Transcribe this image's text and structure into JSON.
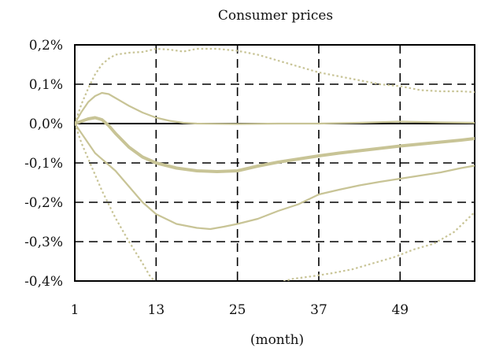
{
  "chart_data": {
    "type": "line",
    "title": "Consumer prices",
    "xlabel": "(month)",
    "ylabel": "",
    "xlim": [
      1,
      60
    ],
    "ylim": [
      -0.4,
      0.2
    ],
    "x_ticks": [
      1,
      13,
      25,
      37,
      49
    ],
    "x_tick_labels": [
      "1",
      "13",
      "25",
      "37",
      "49"
    ],
    "y_ticks": [
      0.2,
      0.1,
      0.0,
      -0.1,
      -0.2,
      -0.3,
      -0.4
    ],
    "y_tick_labels": [
      "0,2%",
      "0,1%",
      "0,0%",
      "-0,1%",
      "-0,2%",
      "-0,3%",
      "-0,4%"
    ],
    "grid": true,
    "line_color": "#c8c496",
    "series": [
      {
        "style": "thick",
        "points": [
          [
            1,
            0.0
          ],
          [
            2,
            0.006
          ],
          [
            3,
            0.012
          ],
          [
            4,
            0.015
          ],
          [
            5,
            0.01
          ],
          [
            6,
            -0.005
          ],
          [
            7,
            -0.025
          ],
          [
            9,
            -0.06
          ],
          [
            11,
            -0.085
          ],
          [
            13,
            -0.1
          ],
          [
            16,
            -0.113
          ],
          [
            19,
            -0.12
          ],
          [
            22,
            -0.122
          ],
          [
            25,
            -0.12
          ],
          [
            28,
            -0.108
          ],
          [
            31,
            -0.098
          ],
          [
            34,
            -0.09
          ],
          [
            37,
            -0.082
          ],
          [
            40,
            -0.075
          ],
          [
            43,
            -0.069
          ],
          [
            46,
            -0.063
          ],
          [
            49,
            -0.057
          ],
          [
            52,
            -0.052
          ],
          [
            55,
            -0.047
          ],
          [
            58,
            -0.042
          ],
          [
            60,
            -0.038
          ]
        ]
      },
      {
        "style": "thin",
        "points": [
          [
            1,
            0.0
          ],
          [
            2,
            0.03
          ],
          [
            3,
            0.055
          ],
          [
            4,
            0.07
          ],
          [
            5,
            0.078
          ],
          [
            6,
            0.075
          ],
          [
            7,
            0.065
          ],
          [
            9,
            0.045
          ],
          [
            11,
            0.028
          ],
          [
            13,
            0.015
          ],
          [
            15,
            0.007
          ],
          [
            17,
            0.002
          ],
          [
            19,
            0.0
          ],
          [
            25,
            -0.001
          ],
          [
            31,
            0.0
          ],
          [
            37,
            0.0
          ],
          [
            43,
            0.002
          ],
          [
            49,
            0.005
          ],
          [
            55,
            0.003
          ],
          [
            60,
            0.002
          ]
        ]
      },
      {
        "style": "thin",
        "points": [
          [
            1,
            0.0
          ],
          [
            2,
            -0.025
          ],
          [
            3,
            -0.05
          ],
          [
            4,
            -0.075
          ],
          [
            5,
            -0.09
          ],
          [
            7,
            -0.12
          ],
          [
            9,
            -0.16
          ],
          [
            11,
            -0.2
          ],
          [
            13,
            -0.23
          ],
          [
            16,
            -0.255
          ],
          [
            19,
            -0.265
          ],
          [
            21,
            -0.268
          ],
          [
            23,
            -0.262
          ],
          [
            25,
            -0.255
          ],
          [
            28,
            -0.242
          ],
          [
            31,
            -0.222
          ],
          [
            34,
            -0.205
          ],
          [
            37,
            -0.18
          ],
          [
            40,
            -0.168
          ],
          [
            43,
            -0.157
          ],
          [
            46,
            -0.148
          ],
          [
            49,
            -0.14
          ],
          [
            52,
            -0.132
          ],
          [
            55,
            -0.124
          ],
          [
            58,
            -0.113
          ],
          [
            60,
            -0.107
          ]
        ]
      },
      {
        "style": "dotted",
        "points": [
          [
            1,
            0.0
          ],
          [
            2,
            0.05
          ],
          [
            3,
            0.09
          ],
          [
            4,
            0.125
          ],
          [
            5,
            0.15
          ],
          [
            6,
            0.165
          ],
          [
            7,
            0.175
          ],
          [
            9,
            0.18
          ],
          [
            11,
            0.182
          ],
          [
            13,
            0.19
          ],
          [
            15,
            0.188
          ],
          [
            17,
            0.183
          ],
          [
            19,
            0.19
          ],
          [
            22,
            0.19
          ],
          [
            25,
            0.185
          ],
          [
            28,
            0.175
          ],
          [
            31,
            0.16
          ],
          [
            34,
            0.145
          ],
          [
            37,
            0.13
          ],
          [
            40,
            0.12
          ],
          [
            43,
            0.11
          ],
          [
            46,
            0.1
          ],
          [
            49,
            0.095
          ],
          [
            52,
            0.085
          ],
          [
            55,
            0.082
          ],
          [
            58,
            0.082
          ],
          [
            60,
            0.08
          ]
        ]
      },
      {
        "style": "dotted",
        "points": [
          [
            1,
            0.0
          ],
          [
            2,
            -0.05
          ],
          [
            3,
            -0.09
          ],
          [
            4,
            -0.13
          ],
          [
            5,
            -0.17
          ],
          [
            7,
            -0.24
          ],
          [
            9,
            -0.3
          ],
          [
            11,
            -0.355
          ],
          [
            12,
            -0.385
          ],
          [
            13,
            -0.405
          ],
          [
            31,
            -0.405
          ],
          [
            33,
            -0.395
          ],
          [
            36,
            -0.388
          ],
          [
            39,
            -0.38
          ],
          [
            42,
            -0.37
          ],
          [
            45,
            -0.355
          ],
          [
            48,
            -0.34
          ],
          [
            51,
            -0.32
          ],
          [
            54,
            -0.305
          ],
          [
            57,
            -0.275
          ],
          [
            60,
            -0.225
          ]
        ]
      }
    ]
  }
}
